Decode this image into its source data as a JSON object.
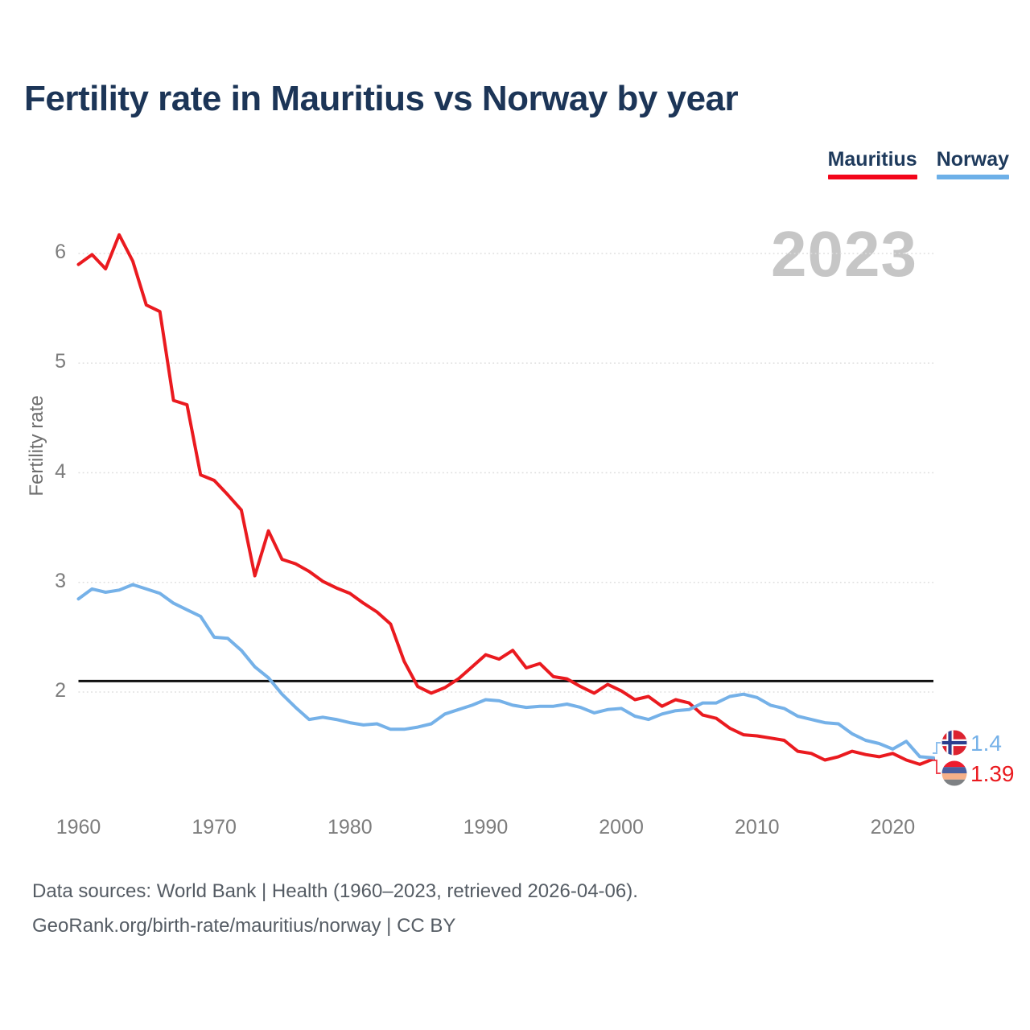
{
  "title": "Fertility rate in Mauritius vs Norway by year",
  "legend": [
    {
      "label": "Mauritius",
      "color": "#f3051a"
    },
    {
      "label": "Norway",
      "color": "#6db0e8"
    }
  ],
  "watermark": "2023",
  "y_axis": {
    "label": "Fertility rate",
    "ticks": [
      6,
      5,
      4,
      3,
      2
    ]
  },
  "x_axis": {
    "ticks": [
      1960,
      1970,
      1980,
      1990,
      2000,
      2010,
      2020
    ]
  },
  "reference_line": {
    "value": 2.1,
    "color": "#111111"
  },
  "endpoint_labels": {
    "norway": "1.4",
    "mauritius": "1.39"
  },
  "flags": {
    "norway": {
      "background": "#dc2330",
      "cross_outline": "#ffffff",
      "cross": "#2b3f8f"
    },
    "mauritius": {
      "stripes": [
        "#ed1c2e",
        "#4a5e9e",
        "#f6b089",
        "#7e8184"
      ]
    }
  },
  "connector_colors": {
    "norway": "#8fc0ee",
    "mauritius": "#ee4450"
  },
  "footer": {
    "line1": "Data sources: World Bank | Health (1960–2023, retrieved 2026-04-06).",
    "line2": "GeoRank.org/birth-rate/mauritius/norway | CC BY"
  },
  "chart_data": {
    "type": "line",
    "title": "Fertility rate in Mauritius vs Norway by year",
    "xlabel": "",
    "ylabel": "Fertility rate",
    "ylim": [
      1.2,
      6.3
    ],
    "xlim": [
      1960,
      2023
    ],
    "grid": "dotted-horizontal",
    "legend_position": "top-right",
    "x": [
      1960,
      1961,
      1962,
      1963,
      1964,
      1965,
      1966,
      1967,
      1968,
      1969,
      1970,
      1971,
      1972,
      1973,
      1974,
      1975,
      1976,
      1977,
      1978,
      1979,
      1980,
      1981,
      1982,
      1983,
      1984,
      1985,
      1986,
      1987,
      1988,
      1989,
      1990,
      1991,
      1992,
      1993,
      1994,
      1995,
      1996,
      1997,
      1998,
      1999,
      2000,
      2001,
      2002,
      2003,
      2004,
      2005,
      2006,
      2007,
      2008,
      2009,
      2010,
      2011,
      2012,
      2013,
      2014,
      2015,
      2016,
      2017,
      2018,
      2019,
      2020,
      2021,
      2022,
      2023
    ],
    "series": [
      {
        "name": "Mauritius",
        "color": "#ea1a1f",
        "values": [
          5.9,
          5.99,
          5.86,
          6.17,
          5.93,
          5.53,
          5.47,
          4.66,
          4.62,
          3.98,
          3.93,
          3.8,
          3.66,
          3.06,
          3.47,
          3.21,
          3.17,
          3.1,
          3.01,
          2.95,
          2.9,
          2.81,
          2.73,
          2.62,
          2.28,
          2.05,
          1.99,
          2.04,
          2.12,
          2.23,
          2.34,
          2.3,
          2.38,
          2.22,
          2.26,
          2.14,
          2.12,
          2.05,
          1.99,
          2.07,
          2.01,
          1.93,
          1.96,
          1.87,
          1.93,
          1.9,
          1.79,
          1.76,
          1.67,
          1.61,
          1.6,
          1.58,
          1.56,
          1.46,
          1.44,
          1.38,
          1.41,
          1.46,
          1.43,
          1.41,
          1.44,
          1.38,
          1.34,
          1.39
        ]
      },
      {
        "name": "Norway",
        "color": "#75b1e8",
        "values": [
          2.85,
          2.94,
          2.91,
          2.93,
          2.98,
          2.94,
          2.9,
          2.81,
          2.75,
          2.69,
          2.5,
          2.49,
          2.38,
          2.23,
          2.13,
          1.98,
          1.86,
          1.75,
          1.77,
          1.75,
          1.72,
          1.7,
          1.71,
          1.66,
          1.66,
          1.68,
          1.71,
          1.8,
          1.84,
          1.88,
          1.93,
          1.92,
          1.88,
          1.86,
          1.87,
          1.87,
          1.89,
          1.86,
          1.81,
          1.84,
          1.85,
          1.78,
          1.75,
          1.8,
          1.83,
          1.84,
          1.9,
          1.9,
          1.96,
          1.98,
          1.95,
          1.88,
          1.85,
          1.78,
          1.75,
          1.72,
          1.71,
          1.62,
          1.56,
          1.53,
          1.48,
          1.55,
          1.41,
          1.4
        ]
      }
    ]
  }
}
